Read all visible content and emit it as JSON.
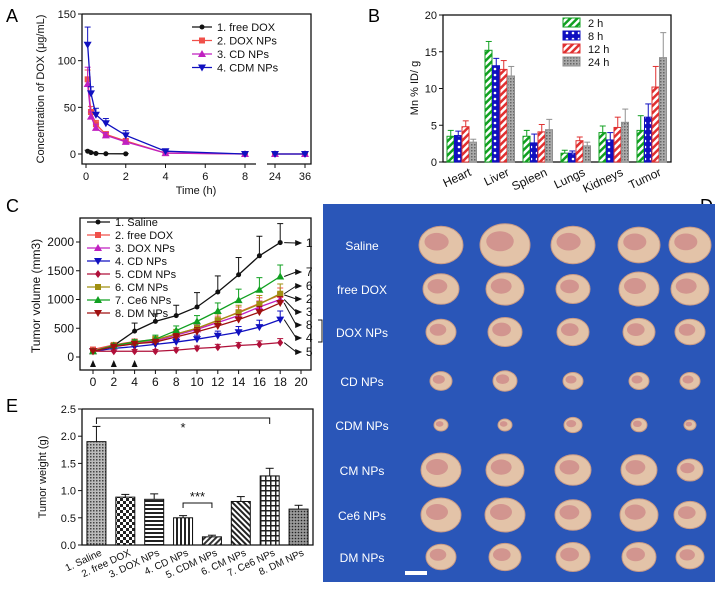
{
  "colors": {
    "black": "#111111",
    "red": "#f0504a",
    "magenta": "#c020c0",
    "blue": "#1010c0",
    "darkred": "#b0103a",
    "olive": "#a09010",
    "green": "#10a020",
    "maroon": "#a01010",
    "gray": "#909090",
    "photo_bg": "#2a56b8"
  },
  "chart_data": [
    {
      "panel": "A",
      "type": "line",
      "xlabel": "Time (h)",
      "ylabel": "Concentration of DOX (μg/mL)",
      "ylim": [
        0,
        150
      ],
      "yticks": [
        "0",
        "50",
        "100",
        "150"
      ],
      "xticks": [
        "0",
        "2",
        "4",
        "6",
        "8",
        "24",
        "36"
      ],
      "x": [
        0.083,
        0.25,
        0.5,
        1,
        2,
        4,
        8,
        24,
        36
      ],
      "series": [
        {
          "name": "1. free DOX",
          "color": "#111111",
          "marker": "circle",
          "values": [
            3,
            1.5,
            0.5,
            0.3,
            0.2,
            null,
            null,
            null,
            null
          ],
          "err": [
            1,
            0.5,
            0.3,
            0.2,
            0.2,
            null,
            null,
            null,
            null
          ]
        },
        {
          "name": "2. DOX NPs",
          "color": "#f0504a",
          "marker": "square",
          "values": [
            80,
            45,
            32,
            21,
            14,
            1,
            0,
            0,
            0
          ],
          "err": [
            10,
            6,
            4,
            3,
            2,
            1,
            0,
            0,
            0
          ]
        },
        {
          "name": "3. CD NPs",
          "color": "#c020c0",
          "marker": "triangle",
          "values": [
            75,
            40,
            28,
            20,
            13,
            1,
            0,
            0,
            0
          ],
          "err": [
            18,
            5,
            4,
            3,
            2,
            1,
            0,
            0,
            0
          ]
        },
        {
          "name": "4. CDM NPs",
          "color": "#1010c0",
          "marker": "triangle-down",
          "values": [
            117,
            65,
            42,
            33,
            20,
            3,
            0,
            0,
            0
          ],
          "err": [
            19,
            7,
            7,
            5,
            5,
            1,
            0,
            0,
            0
          ]
        }
      ]
    },
    {
      "panel": "B",
      "type": "bar",
      "ylabel": "Mn % ID/ g",
      "ylim": [
        0,
        20
      ],
      "yticks": [
        "0",
        "5",
        "10",
        "15",
        "20"
      ],
      "categories": [
        "Heart",
        "Liver",
        "Spleen",
        "Lungs",
        "Kidneys",
        "Tumor"
      ],
      "series": [
        {
          "name": "2 h",
          "color": "#10a020",
          "values": [
            3.5,
            15.2,
            3.5,
            1.2,
            4.0,
            4.3
          ],
          "err": [
            0.8,
            1.2,
            0.8,
            0.4,
            0.9,
            2.0
          ]
        },
        {
          "name": "8 h",
          "color": "#1010c0",
          "values": [
            3.6,
            13.1,
            2.6,
            1.2,
            3.0,
            6.1
          ],
          "err": [
            0.6,
            1.0,
            1.2,
            0.3,
            1.0,
            1.8
          ]
        },
        {
          "name": "12 h",
          "color": "#e03030",
          "values": [
            4.8,
            12.6,
            4.1,
            2.9,
            4.7,
            10.2
          ],
          "err": [
            0.8,
            1.2,
            1.0,
            0.5,
            1.4,
            2.8
          ]
        },
        {
          "name": "24 h",
          "color": "#909090",
          "values": [
            2.7,
            11.7,
            4.4,
            2.2,
            5.4,
            14.2
          ],
          "err": [
            0.4,
            1.3,
            1.4,
            0.5,
            1.8,
            3.4
          ]
        }
      ]
    },
    {
      "panel": "C",
      "type": "line",
      "xlabel": "",
      "ylabel": "Tumor volume (mm3)",
      "ylim": [
        0,
        2400
      ],
      "xlim": [
        0,
        20
      ],
      "yticks": [
        "0",
        "500",
        "1000",
        "1500",
        "2000"
      ],
      "xticks": [
        "0",
        "2",
        "4",
        "6",
        "8",
        "10",
        "12",
        "14",
        "16",
        "18",
        "20"
      ],
      "x": [
        0,
        2,
        4,
        6,
        8,
        10,
        12,
        14,
        16,
        18
      ],
      "injection_days": [
        0,
        2,
        4
      ],
      "series": [
        {
          "name": "1. Saline",
          "label": "1",
          "color": "#111111",
          "values": [
            100,
            200,
            450,
            620,
            720,
            870,
            1130,
            1430,
            1760,
            1990
          ],
          "err": [
            20,
            40,
            140,
            130,
            180,
            250,
            280,
            300,
            340,
            330
          ]
        },
        {
          "name": "2. free DOX",
          "label": "2",
          "color": "#f0504a",
          "values": [
            130,
            210,
            270,
            300,
            400,
            500,
            630,
            780,
            930,
            1080
          ],
          "err": [
            20,
            30,
            40,
            50,
            60,
            70,
            80,
            90,
            100,
            120
          ]
        },
        {
          "name": "3. DOX NPs",
          "label": "3",
          "color": "#c020c0",
          "values": [
            100,
            180,
            240,
            280,
            380,
            480,
            600,
            720,
            870,
            1000
          ],
          "err": [
            20,
            30,
            40,
            50,
            60,
            70,
            80,
            90,
            100,
            110
          ]
        },
        {
          "name": "4. CD NPs",
          "label": "4",
          "color": "#1010c0",
          "values": [
            100,
            150,
            180,
            220,
            260,
            310,
            370,
            430,
            520,
            650
          ],
          "err": [
            20,
            30,
            40,
            50,
            60,
            70,
            80,
            100,
            120,
            150
          ]
        },
        {
          "name": "5. CDM NPs",
          "label": "5",
          "color": "#b0103a",
          "values": [
            100,
            100,
            100,
            100,
            120,
            150,
            170,
            200,
            220,
            250
          ],
          "err": [
            20,
            20,
            30,
            30,
            40,
            40,
            50,
            50,
            60,
            70
          ]
        },
        {
          "name": "6. CM NPs",
          "label": "6",
          "color": "#a09010",
          "values": [
            100,
            200,
            250,
            300,
            400,
            500,
            640,
            770,
            920,
            1100
          ],
          "err": [
            20,
            30,
            40,
            60,
            80,
            90,
            110,
            130,
            150,
            170
          ]
        },
        {
          "name": "7. Ce6 NPs",
          "label": "7",
          "color": "#10a020",
          "values": [
            100,
            200,
            260,
            310,
            460,
            620,
            800,
            990,
            1170,
            1400
          ],
          "err": [
            20,
            30,
            40,
            70,
            80,
            100,
            140,
            190,
            210,
            200
          ]
        },
        {
          "name": "8. DM NPs",
          "label": "8",
          "color": "#a01010",
          "values": [
            100,
            180,
            230,
            260,
            350,
            440,
            540,
            650,
            780,
            940
          ],
          "err": [
            20,
            30,
            40,
            50,
            60,
            70,
            80,
            90,
            100,
            110
          ]
        }
      ],
      "significance": [
        "*",
        "*"
      ]
    },
    {
      "panel": "E",
      "type": "bar",
      "ylabel": "Tumor weight (g)",
      "ylim": [
        0,
        2.5
      ],
      "yticks": [
        "0.0",
        "0.5",
        "1.0",
        "1.5",
        "2.0",
        "2.5"
      ],
      "categories": [
        "1. Saline",
        "2. free DOX",
        "3. DOX NPs",
        "4. CD NPs",
        "5. CDM NPs",
        "6. CM NPs",
        "7. Ce6 NPs",
        "8. DM NPs"
      ],
      "values": [
        1.9,
        0.88,
        0.84,
        0.5,
        0.15,
        0.8,
        1.27,
        0.66
      ],
      "err": [
        0.28,
        0.05,
        0.1,
        0.04,
        0.03,
        0.09,
        0.14,
        0.07
      ],
      "annotations": [
        {
          "from": "1. Saline",
          "to": "7. Ce6 NPs",
          "text": "*"
        },
        {
          "from": "4. CD NPs",
          "to": "5. CDM NPs",
          "text": "***"
        }
      ]
    }
  ],
  "panels": {
    "A": "A",
    "B": "B",
    "C": "C",
    "D": "D",
    "E": "E"
  },
  "photo": {
    "rows": [
      "Saline",
      "free DOX",
      "DOX NPs",
      "CD NPs",
      "CDM NPs",
      "CM NPs",
      "Ce6 NPs",
      "DM NPs"
    ]
  }
}
